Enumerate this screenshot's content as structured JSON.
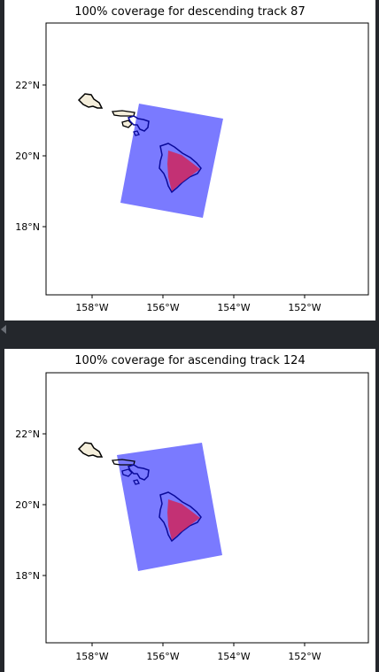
{
  "maps": [
    {
      "title": "100% coverage for descending track 87",
      "lon_ticks": [
        "158°W",
        "156°W",
        "154°W",
        "152°W"
      ],
      "lat_ticks": [
        "22°N",
        "20°N",
        "18°N"
      ],
      "track_direction": "descending",
      "track_number": 87,
      "coverage_percent": 100
    },
    {
      "title": "100% coverage for ascending track 124",
      "lon_ticks": [
        "158°W",
        "156°W",
        "154°W",
        "152°W"
      ],
      "lat_ticks": [
        "22°N",
        "20°N",
        "18°N"
      ],
      "track_direction": "ascending",
      "track_number": 124,
      "coverage_percent": 100
    }
  ],
  "colors": {
    "swath": "#7a7aff",
    "coastline_inside": "#0a0a9a",
    "coastline_outside": "#000000",
    "land": "#f4eedb",
    "target_region": "#d0245c",
    "window_bg": "#24272c"
  }
}
